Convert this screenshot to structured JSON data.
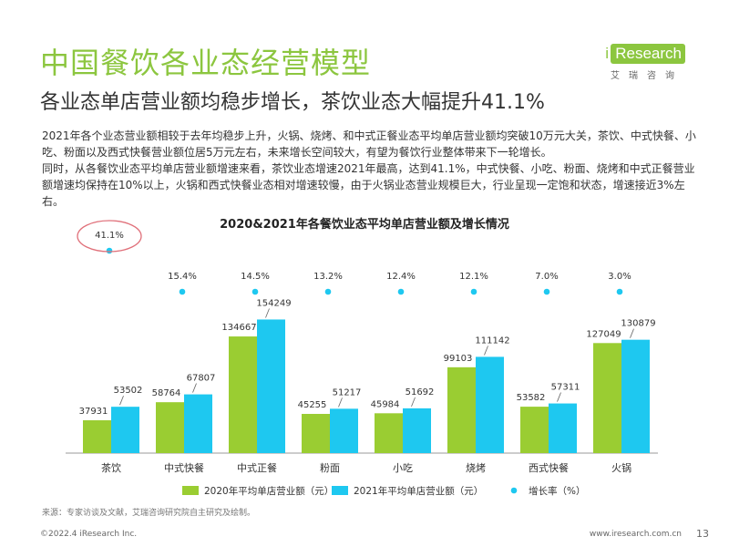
{
  "header": {
    "title": "中国餐饮各业态经营模型",
    "subtitle": "各业态单店营业额均稳步增长，茶饮业态大幅提升41.1%"
  },
  "logo": {
    "mark": "i",
    "name": "Research",
    "cn": "艾瑞咨询"
  },
  "body": {
    "paragraph1": "2021年各个业态营业额相较于去年均稳步上升，火锅、烧烤、和中式正餐业态平均单店营业额均突破10万元大关，茶饮、中式快餐、小吃、粉面以及西式快餐营业额位居5万元左右，未来增长空间较大，有望为餐饮行业整体带来下一轮增长。",
    "paragraph2": "同时，从各餐饮业态平均单店营业额增速来看，茶饮业态增速2021年最高，达到41.1%，中式快餐、小吃、粉面、烧烤和中式正餐营业额增速均保持在10%以上，火锅和西式快餐业态相对增速较慢，由于火锅业态营业规模巨大，行业呈现一定饱和状态，增速接近3%左右。"
  },
  "chart_data": {
    "type": "bar",
    "title": "2020&2021年各餐饮业态平均单店营业额及增长情况",
    "categories": [
      "茶饮",
      "中式快餐",
      "中式正餐",
      "粉面",
      "小吃",
      "烧烤",
      "西式快餐",
      "火锅"
    ],
    "series": [
      {
        "name": "2020年平均单店营业额（元）",
        "values": [
          37931,
          58764,
          134667,
          45255,
          45984,
          99103,
          53582,
          127049
        ],
        "color": "#9acd32"
      },
      {
        "name": "2021年平均单店营业额（元）",
        "values": [
          53502,
          67807,
          154249,
          51217,
          51692,
          111142,
          57311,
          130879
        ],
        "color": "#1ec8f0"
      }
    ],
    "growth": {
      "name": "增长率（%）",
      "values": [
        41.1,
        15.4,
        14.5,
        13.2,
        12.4,
        12.1,
        7.0,
        3.0
      ],
      "labels": [
        "41.1%",
        "15.4%",
        "14.5%",
        "13.2%",
        "12.4%",
        "12.1%",
        "7.0%",
        "3.0%"
      ],
      "color": "#1ec8f0"
    },
    "ylim": [
      0,
      160000
    ],
    "legend_position": "bottom"
  },
  "footer": {
    "source": "来源：专家访谈及文献，艾瑞咨询研究院自主研究及绘制。",
    "copyright": "©2022.4 iResearch Inc.",
    "website": "www.iresearch.com.cn",
    "page": "13"
  }
}
